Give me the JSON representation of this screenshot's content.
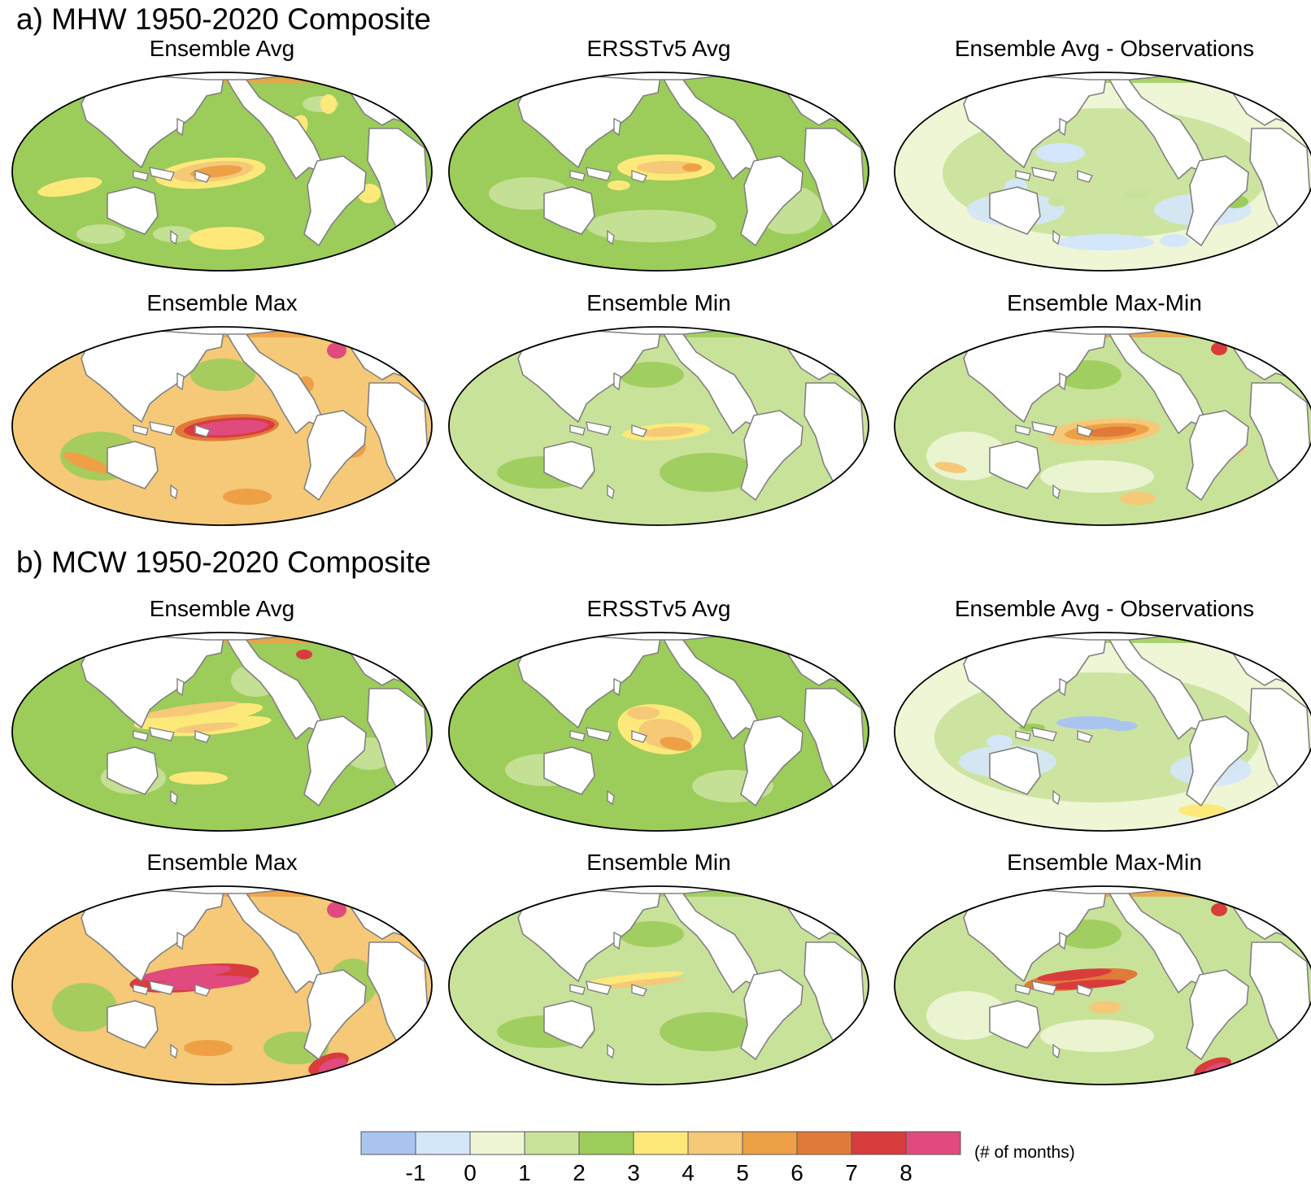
{
  "sections": [
    {
      "label": "a) MHW 1950-2020 Composite"
    },
    {
      "label": "b) MCW 1950-2020 Composite"
    }
  ],
  "panels": [
    {
      "title": "Ensemble Avg",
      "variant": "avg"
    },
    {
      "title": "ERSSTv5 Avg",
      "variant": "obs"
    },
    {
      "title": "Ensemble Avg - Observations",
      "variant": "diff"
    },
    {
      "title": "Ensemble Max",
      "variant": "max"
    },
    {
      "title": "Ensemble Min",
      "variant": "min"
    },
    {
      "title": "Ensemble Max-Min",
      "variant": "range"
    },
    {
      "title": "Ensemble Avg",
      "variant": "avg2"
    },
    {
      "title": "ERSSTv5 Avg",
      "variant": "obs2"
    },
    {
      "title": "Ensemble Avg - Observations",
      "variant": "diff2"
    },
    {
      "title": "Ensemble Max",
      "variant": "max2"
    },
    {
      "title": "Ensemble Min",
      "variant": "min2"
    },
    {
      "title": "Ensemble Max-Min",
      "variant": "range2"
    }
  ],
  "chart_data": {
    "type": "heatmap",
    "title": "MHW / MCW 1950-2020 Composite",
    "sections": [
      "a) MHW 1950-2020 Composite",
      "b) MCW 1950-2020 Composite"
    ],
    "panel_titles": [
      "Ensemble Avg",
      "ERSSTv5 Avg",
      "Ensemble Avg - Observations",
      "Ensemble Max",
      "Ensemble Min",
      "Ensemble Max-Min"
    ],
    "colorbar": {
      "units": "(# of months)",
      "tick_labels": [
        "-1",
        "0",
        "1",
        "2",
        "3",
        "4",
        "5",
        "6",
        "7",
        "8"
      ],
      "range": [
        -2,
        9
      ],
      "colors": [
        "#aac4f0",
        "#d4e6fa",
        "#eef6d6",
        "#c9e29a",
        "#9ccc5a",
        "#fce97a",
        "#f5c977",
        "#eea046",
        "#e07a38",
        "#d83c3c",
        "#e04a7e"
      ]
    }
  }
}
